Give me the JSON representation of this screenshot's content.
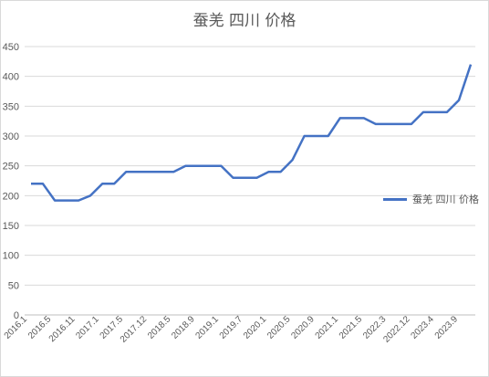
{
  "chart_data": {
    "type": "line",
    "title": "蚕羌 四川 价格",
    "xlabel": "",
    "ylabel": "",
    "ylim": [
      0,
      450
    ],
    "yticks": [
      0,
      50,
      100,
      150,
      200,
      250,
      300,
      350,
      400,
      450
    ],
    "grid": true,
    "legend_position": "right",
    "x_tick_labels": [
      "2016.1",
      "2016.5",
      "2016.11",
      "2017.1",
      "2017.5",
      "2017.12",
      "2018.5",
      "2018.9",
      "2019.1",
      "2019.7",
      "2020.1",
      "2020.5",
      "2020.9",
      "2021.1",
      "2021.5",
      "2022.3",
      "2022.12",
      "2023.4",
      "2023.9"
    ],
    "series": [
      {
        "name": "蚕羌 四川 价格",
        "color": "#4472c4",
        "values": [
          220,
          220,
          192,
          192,
          192,
          200,
          220,
          220,
          240,
          240,
          240,
          240,
          240,
          250,
          250,
          250,
          250,
          230,
          230,
          230,
          240,
          240,
          260,
          300,
          300,
          300,
          330,
          330,
          330,
          320,
          320,
          320,
          320,
          340,
          340,
          340,
          360,
          420
        ]
      }
    ]
  }
}
